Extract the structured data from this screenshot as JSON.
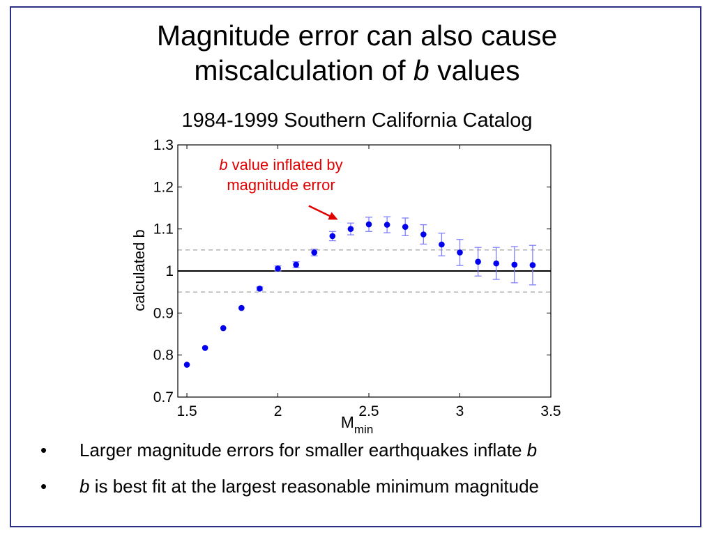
{
  "slide": {
    "title_line1": "Magnitude error can also cause",
    "title_line2_pre": "miscalculation of ",
    "title_line2_var": "b",
    "title_line2_post": " values",
    "subtitle": "1984-1999 Southern California Catalog",
    "annotation_var": "b",
    "annotation_line1_rest": " value inflated by",
    "annotation_line2": "magnitude error",
    "bullets": [
      {
        "marker": "•",
        "pre": "Larger magnitude errors for smaller earthquakes inflate ",
        "var": "b",
        "post": ""
      },
      {
        "marker": "•",
        "pre": "",
        "var": "b",
        "post": " is best fit at the largest reasonable minimum magnitude"
      }
    ]
  },
  "colors": {
    "frame": "#2b2f86",
    "points": "#0000ee",
    "errorbars": "#7f7fff",
    "reference_line": "#000000",
    "dashed_lines": "#aaaaaa",
    "annotation": "#e00000"
  },
  "chart_data": {
    "type": "scatter",
    "title": "",
    "xlabel": "M",
    "xlabel_subscript": "min",
    "ylabel": "calculated b",
    "xlim": [
      1.45,
      3.5
    ],
    "ylim": [
      0.7,
      1.3
    ],
    "x_ticks": [
      1.5,
      2,
      2.5,
      3,
      3.5
    ],
    "x_tick_labels": [
      "1.5",
      "2",
      "2.5",
      "3",
      "3.5"
    ],
    "y_ticks": [
      0.7,
      0.8,
      0.9,
      1.0,
      1.1,
      1.2,
      1.3
    ],
    "y_tick_labels": [
      "0.7",
      "0.8",
      "0.9",
      "1",
      "1.1",
      "1.2",
      "1.3"
    ],
    "grid": false,
    "reference_lines": [
      {
        "y": 1.0,
        "style": "solid"
      },
      {
        "y": 1.05,
        "style": "dashed"
      },
      {
        "y": 0.95,
        "style": "dashed"
      }
    ],
    "points": [
      {
        "x": 1.5,
        "y": 0.777,
        "err": 0
      },
      {
        "x": 1.6,
        "y": 0.817,
        "err": 0
      },
      {
        "x": 1.7,
        "y": 0.864,
        "err": 0
      },
      {
        "x": 1.8,
        "y": 0.912,
        "err": 0
      },
      {
        "x": 1.9,
        "y": 0.958,
        "err": 0.004
      },
      {
        "x": 2.0,
        "y": 1.006,
        "err": 0.006
      },
      {
        "x": 2.1,
        "y": 1.015,
        "err": 0.007
      },
      {
        "x": 2.2,
        "y": 1.044,
        "err": 0.008
      },
      {
        "x": 2.3,
        "y": 1.083,
        "err": 0.011
      },
      {
        "x": 2.4,
        "y": 1.1,
        "err": 0.014
      },
      {
        "x": 2.5,
        "y": 1.111,
        "err": 0.017
      },
      {
        "x": 2.6,
        "y": 1.11,
        "err": 0.019
      },
      {
        "x": 2.7,
        "y": 1.105,
        "err": 0.021
      },
      {
        "x": 2.8,
        "y": 1.087,
        "err": 0.023
      },
      {
        "x": 2.9,
        "y": 1.063,
        "err": 0.027
      },
      {
        "x": 3.0,
        "y": 1.044,
        "err": 0.031
      },
      {
        "x": 3.1,
        "y": 1.022,
        "err": 0.034
      },
      {
        "x": 3.2,
        "y": 1.018,
        "err": 0.038
      },
      {
        "x": 3.3,
        "y": 1.015,
        "err": 0.043
      },
      {
        "x": 3.4,
        "y": 1.014,
        "err": 0.047
      }
    ],
    "annotation_arrow": {
      "from": [
        2.17,
        1.155
      ],
      "to": [
        2.33,
        1.122
      ]
    }
  }
}
